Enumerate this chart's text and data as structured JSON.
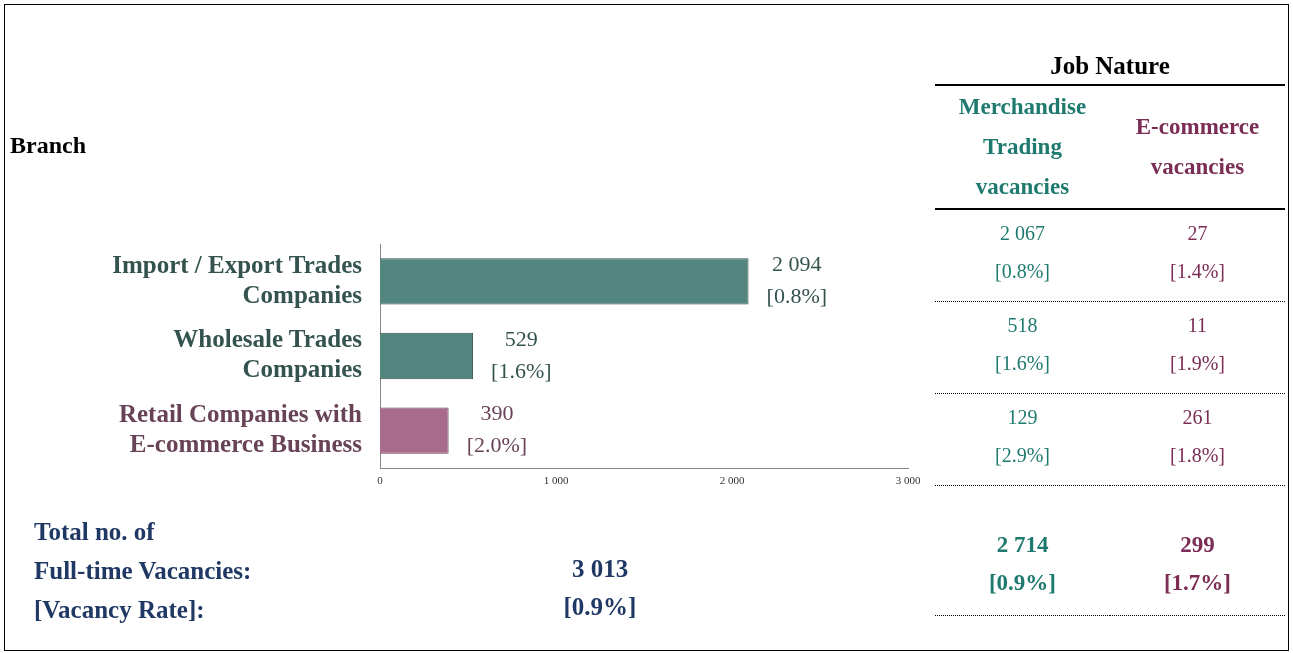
{
  "chart_data": [
    {
      "type": "bar",
      "orientation": "horizontal",
      "ylabel": "Branch",
      "categories": [
        "Import / Export Trades Companies",
        "Wholesale Trades Companies",
        "Retail Companies with E-commerce Business"
      ],
      "values": [
        2094,
        529,
        390
      ],
      "colors": [
        "#548680",
        "#548680",
        "#a86b8c"
      ],
      "value_labels": [
        "2 094\n[0.8%]",
        "529\n[1.6%]",
        "390\n[2.0%]"
      ],
      "xlim": [
        0,
        3000
      ],
      "xticks": [
        0,
        {
          "value": 1000,
          "label": "1 000"
        },
        {
          "value": 2000,
          "label": "2 000"
        },
        {
          "value": 3000,
          "label": "3 000"
        }
      ],
      "grid": false,
      "legend": false,
      "annotations": [
        "Total no. of\nFull-time Vacancies:\n[Vacancy Rate]:",
        "3 013\n[0.9%]"
      ]
    },
    {
      "type": "other",
      "title": "Job Nature",
      "colors": [
        "#1e7a6e",
        "#7b2d55"
      ],
      "annotations": [
        "Merchandise Trading vacancies",
        "E-commerce vacancies",
        "2 067\n[0.8%]",
        "27\n[1.4%]",
        "518\n[1.6%]",
        "11\n[1.9%]",
        "129\n[2.9%]",
        "261\n[1.8%]",
        "2 714\n[0.9%]",
        "299\n[1.7%]"
      ]
    }
  ]
}
